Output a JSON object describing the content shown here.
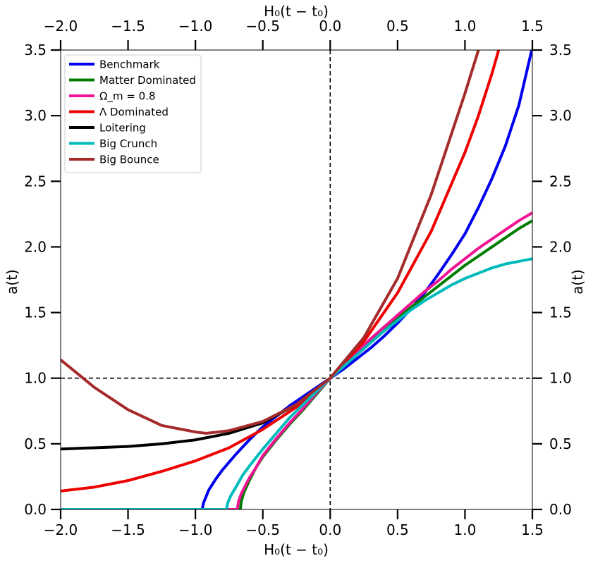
{
  "chart_data": {
    "type": "line",
    "title": "",
    "xlabel": "H₀(t − t₀)",
    "xlabel_top": "H₀(t − t₀)",
    "ylabel": "a(t)",
    "ylabel_right": "a(t)",
    "xlim": [
      -2.0,
      1.5
    ],
    "ylim": [
      0.0,
      3.5
    ],
    "x_ticks": [
      -2.0,
      -1.5,
      -1.0,
      -0.5,
      0.0,
      0.5,
      1.0,
      1.5
    ],
    "x_tick_labels": [
      "−2.0",
      "−1.5",
      "−1.0",
      "−0.5",
      "0.0",
      "0.5",
      "1.0",
      "1.5"
    ],
    "y_ticks": [
      0.0,
      0.5,
      1.0,
      1.5,
      2.0,
      2.5,
      3.0,
      3.5
    ],
    "y_tick_labels": [
      "0.0",
      "0.5",
      "1.0",
      "1.5",
      "2.0",
      "2.5",
      "3.0",
      "3.5"
    ],
    "grid": false,
    "legend_position": "top-left",
    "reference_lines": [
      {
        "orientation": "vertical",
        "value": 0.0,
        "style": "dashed",
        "color": "#000000"
      },
      {
        "orientation": "horizontal",
        "value": 1.0,
        "style": "dashed",
        "color": "#000000"
      }
    ],
    "series": [
      {
        "name": "Benchmark",
        "color": "#0000ee",
        "x": [
          -2.0,
          -1.5,
          -0.95,
          -0.94,
          -0.92,
          -0.9,
          -0.85,
          -0.8,
          -0.7,
          -0.6,
          -0.5,
          -0.4,
          -0.3,
          -0.2,
          -0.1,
          0.0,
          0.1,
          0.2,
          0.3,
          0.4,
          0.5,
          0.6,
          0.7,
          0.8,
          0.9,
          1.0,
          1.1,
          1.2,
          1.3,
          1.4,
          1.5
        ],
        "y": [
          0.0,
          0.0,
          0.0,
          0.05,
          0.1,
          0.15,
          0.23,
          0.3,
          0.42,
          0.53,
          0.63,
          0.71,
          0.79,
          0.86,
          0.93,
          1.0,
          1.07,
          1.15,
          1.23,
          1.32,
          1.42,
          1.53,
          1.65,
          1.79,
          1.94,
          2.1,
          2.3,
          2.52,
          2.77,
          3.08,
          3.52
        ]
      },
      {
        "name": "Matter Dominated",
        "color": "#007d00",
        "x": [
          -2.0,
          -1.0,
          -0.667,
          -0.66,
          -0.64,
          -0.6,
          -0.55,
          -0.5,
          -0.4,
          -0.3,
          -0.2,
          -0.1,
          0.0,
          0.1,
          0.2,
          0.3,
          0.4,
          0.5,
          0.6,
          0.7,
          0.8,
          0.9,
          1.0,
          1.1,
          1.2,
          1.3,
          1.4,
          1.5
        ],
        "y": [
          0.0,
          0.0,
          0.0,
          0.06,
          0.13,
          0.22,
          0.32,
          0.4,
          0.53,
          0.65,
          0.76,
          0.88,
          1.0,
          1.1,
          1.19,
          1.28,
          1.37,
          1.46,
          1.54,
          1.62,
          1.7,
          1.78,
          1.86,
          1.93,
          2.0,
          2.07,
          2.14,
          2.2
        ]
      },
      {
        "name": "Ω_m = 0.8",
        "color": "#ee1493",
        "x": [
          -2.0,
          -1.0,
          -0.69,
          -0.68,
          -0.66,
          -0.63,
          -0.6,
          -0.55,
          -0.5,
          -0.4,
          -0.3,
          -0.2,
          -0.1,
          0.0,
          0.1,
          0.2,
          0.3,
          0.4,
          0.5,
          0.6,
          0.7,
          0.8,
          0.9,
          1.0,
          1.1,
          1.2,
          1.3,
          1.4,
          1.5
        ],
        "y": [
          0.0,
          0.0,
          0.0,
          0.06,
          0.12,
          0.18,
          0.24,
          0.32,
          0.41,
          0.54,
          0.66,
          0.77,
          0.89,
          1.0,
          1.1,
          1.2,
          1.3,
          1.39,
          1.48,
          1.57,
          1.66,
          1.74,
          1.83,
          1.91,
          1.99,
          2.06,
          2.13,
          2.2,
          2.26
        ]
      },
      {
        "name": "Λ Dominated",
        "color": "#ee0000",
        "x": [
          -2.0,
          -1.75,
          -1.5,
          -1.25,
          -1.0,
          -0.75,
          -0.5,
          -0.25,
          0.0,
          0.25,
          0.5,
          0.75,
          1.0,
          1.1,
          1.2,
          1.25
        ],
        "y": [
          0.14,
          0.17,
          0.22,
          0.29,
          0.37,
          0.47,
          0.61,
          0.78,
          1.0,
          1.28,
          1.65,
          2.12,
          2.72,
          3.0,
          3.32,
          3.5
        ]
      },
      {
        "name": "Loitering",
        "color": "#000000",
        "x": [
          -2.0,
          -1.75,
          -1.5,
          -1.25,
          -1.0,
          -0.75,
          -0.5,
          -0.25,
          0.0
        ],
        "y": [
          0.46,
          0.47,
          0.48,
          0.5,
          0.53,
          0.58,
          0.66,
          0.8,
          1.0
        ]
      },
      {
        "name": "Big Crunch",
        "color": "#00bbbb",
        "x": [
          -2.0,
          -1.0,
          -0.77,
          -0.76,
          -0.74,
          -0.7,
          -0.65,
          -0.6,
          -0.5,
          -0.4,
          -0.3,
          -0.2,
          -0.1,
          0.0,
          0.1,
          0.2,
          0.3,
          0.4,
          0.5,
          0.6,
          0.7,
          0.8,
          0.9,
          1.0,
          1.1,
          1.2,
          1.3,
          1.4,
          1.5
        ],
        "y": [
          0.0,
          0.0,
          0.0,
          0.05,
          0.1,
          0.17,
          0.26,
          0.33,
          0.46,
          0.58,
          0.7,
          0.8,
          0.9,
          1.0,
          1.09,
          1.18,
          1.27,
          1.36,
          1.44,
          1.52,
          1.59,
          1.65,
          1.71,
          1.76,
          1.8,
          1.84,
          1.87,
          1.89,
          1.91
        ]
      },
      {
        "name": "Big Bounce",
        "color": "#a52a2a",
        "x": [
          -2.0,
          -1.75,
          -1.5,
          -1.25,
          -1.0,
          -0.92,
          -0.75,
          -0.5,
          -0.25,
          0.0,
          0.25,
          0.5,
          0.75,
          1.0,
          1.1
        ],
        "y": [
          1.14,
          0.93,
          0.76,
          0.64,
          0.59,
          0.58,
          0.6,
          0.67,
          0.8,
          1.0,
          1.31,
          1.76,
          2.4,
          3.17,
          3.5
        ]
      }
    ]
  }
}
